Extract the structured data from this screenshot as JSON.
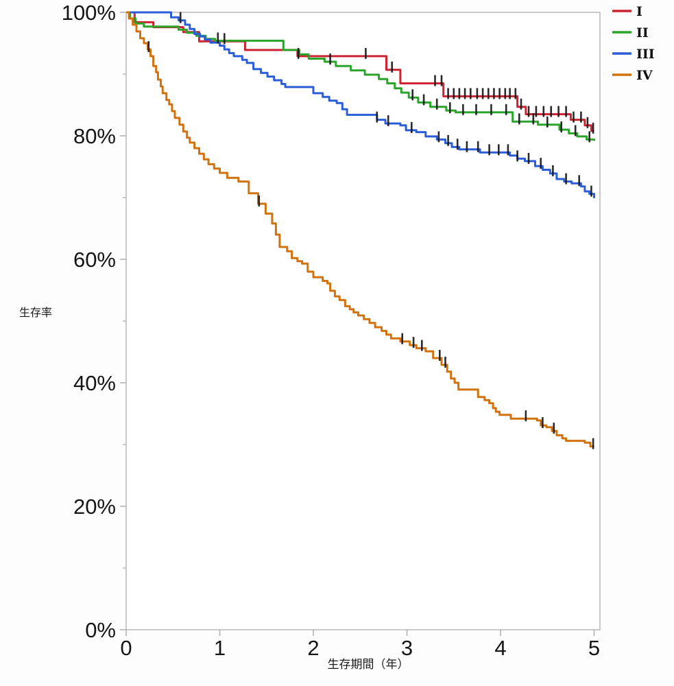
{
  "chart_data": {
    "type": "line",
    "subtype": "kaplan-meier-step",
    "title": "",
    "xlabel": "生存期間（年）",
    "ylabel": "生存率",
    "xlim": [
      0,
      5
    ],
    "ylim": [
      0,
      100
    ],
    "grid": false,
    "legend_position": "top-right",
    "x_ticks": [
      {
        "value": 0,
        "label": "0"
      },
      {
        "value": 1,
        "label": "1"
      },
      {
        "value": 2,
        "label": "2"
      },
      {
        "value": 3,
        "label": "3"
      },
      {
        "value": 4,
        "label": "4"
      },
      {
        "value": 5,
        "label": "5"
      }
    ],
    "y_ticks_major": [
      {
        "value": 100,
        "label": "100%"
      },
      {
        "value": 80,
        "label": "80%"
      },
      {
        "value": 60,
        "label": "60%"
      },
      {
        "value": 40,
        "label": "40%"
      },
      {
        "value": 20,
        "label": "20%"
      },
      {
        "value": 0,
        "label": "0%"
      }
    ],
    "y_ticks_minor": [
      90,
      70,
      50,
      30,
      10
    ],
    "axis_color": "#b3b3b3",
    "series": [
      {
        "name": "I",
        "color": "#cc2433",
        "points": [
          [
            0,
            100
          ],
          [
            0.09,
            98.4
          ],
          [
            0.29,
            97.6
          ],
          [
            0.61,
            96.8
          ],
          [
            0.78,
            95.3
          ],
          [
            1.27,
            93.9
          ],
          [
            1.83,
            92.9
          ],
          [
            2.78,
            90.7
          ],
          [
            2.93,
            88.5
          ],
          [
            3.39,
            86.4
          ],
          [
            4.18,
            84.7
          ],
          [
            4.27,
            83.5
          ],
          [
            4.75,
            82.6
          ],
          [
            4.9,
            81.7
          ],
          [
            4.97,
            80.8
          ],
          [
            5,
            80.8
          ]
        ],
        "censors": [
          1.05,
          1.84,
          2.56,
          2.84,
          3.3,
          3.37,
          3.44,
          3.5,
          3.56,
          3.62,
          3.68,
          3.75,
          3.81,
          3.87,
          3.93,
          3.99,
          4.05,
          4.1,
          4.16,
          4.22,
          4.3,
          4.38,
          4.46,
          4.54,
          4.62,
          4.7,
          4.78,
          4.86,
          4.93,
          4.99
        ]
      },
      {
        "name": "II",
        "color": "#2aa42a",
        "points": [
          [
            0,
            100
          ],
          [
            0.04,
            99
          ],
          [
            0.1,
            98.2
          ],
          [
            0.19,
            97.7
          ],
          [
            0.56,
            97.2
          ],
          [
            0.65,
            96.7
          ],
          [
            0.75,
            96.2
          ],
          [
            0.85,
            95.7
          ],
          [
            0.95,
            95.4
          ],
          [
            1.68,
            93.9
          ],
          [
            1.85,
            93.2
          ],
          [
            1.95,
            92.5
          ],
          [
            2.12,
            92
          ],
          [
            2.24,
            91.3
          ],
          [
            2.4,
            90.6
          ],
          [
            2.55,
            89.9
          ],
          [
            2.7,
            89.2
          ],
          [
            2.79,
            88.5
          ],
          [
            2.87,
            87.7
          ],
          [
            2.94,
            87
          ],
          [
            3.02,
            86.2
          ],
          [
            3.12,
            85.4
          ],
          [
            3.25,
            84.7
          ],
          [
            3.42,
            84.1
          ],
          [
            3.52,
            83.8
          ],
          [
            4.13,
            82.3
          ],
          [
            4.4,
            81.8
          ],
          [
            4.63,
            81
          ],
          [
            4.73,
            80.4
          ],
          [
            4.82,
            79.9
          ],
          [
            4.92,
            79.4
          ],
          [
            5,
            79.2
          ]
        ],
        "censors": [
          0.98,
          2.18,
          3.06,
          3.18,
          3.32,
          3.46,
          3.6,
          3.74,
          3.9,
          4.06,
          4.2,
          4.35,
          4.5,
          4.65,
          4.8,
          4.95
        ]
      },
      {
        "name": "III",
        "color": "#2b5dd7",
        "points": [
          [
            0,
            100
          ],
          [
            0.48,
            99.2
          ],
          [
            0.56,
            98.7
          ],
          [
            0.63,
            98
          ],
          [
            0.68,
            97.3
          ],
          [
            0.73,
            96.5
          ],
          [
            0.79,
            96.1
          ],
          [
            0.84,
            95.6
          ],
          [
            0.9,
            95.1
          ],
          [
            1,
            94.6
          ],
          [
            1.05,
            94
          ],
          [
            1.1,
            93.4
          ],
          [
            1.15,
            92.9
          ],
          [
            1.24,
            92.3
          ],
          [
            1.29,
            91.8
          ],
          [
            1.36,
            90.8
          ],
          [
            1.44,
            90.2
          ],
          [
            1.51,
            89.6
          ],
          [
            1.58,
            89
          ],
          [
            1.66,
            88.4
          ],
          [
            1.7,
            87.9
          ],
          [
            2,
            86.9
          ],
          [
            2.1,
            86.3
          ],
          [
            2.17,
            85.7
          ],
          [
            2.25,
            85.3
          ],
          [
            2.31,
            84.3
          ],
          [
            2.36,
            83.4
          ],
          [
            2.68,
            82.6
          ],
          [
            2.77,
            82
          ],
          [
            2.93,
            81.7
          ],
          [
            2.99,
            80.9
          ],
          [
            3.1,
            80.6
          ],
          [
            3.2,
            79.9
          ],
          [
            3.32,
            79.4
          ],
          [
            3.41,
            78.8
          ],
          [
            3.48,
            78.2
          ],
          [
            3.56,
            77.8
          ],
          [
            3.78,
            77.3
          ],
          [
            4.1,
            76.8
          ],
          [
            4.18,
            76.3
          ],
          [
            4.26,
            75.9
          ],
          [
            4.37,
            75.1
          ],
          [
            4.45,
            74.5
          ],
          [
            4.53,
            73.9
          ],
          [
            4.6,
            73
          ],
          [
            4.68,
            72.6
          ],
          [
            4.76,
            72.3
          ],
          [
            4.86,
            71.8
          ],
          [
            4.9,
            71
          ],
          [
            4.95,
            70.6
          ],
          [
            5,
            69.9
          ]
        ],
        "censors": [
          0.58,
          2.68,
          2.8,
          3.05,
          3.34,
          3.44,
          3.54,
          3.64,
          3.76,
          3.88,
          3.98,
          4.08,
          4.18,
          4.3,
          4.43,
          4.56,
          4.7,
          4.84,
          4.97
        ]
      },
      {
        "name": "IV",
        "color": "#d2720e",
        "points": [
          [
            0,
            100
          ],
          [
            0.03,
            99
          ],
          [
            0.07,
            98
          ],
          [
            0.11,
            96.9
          ],
          [
            0.15,
            95.8
          ],
          [
            0.19,
            95
          ],
          [
            0.23,
            94
          ],
          [
            0.26,
            92.9
          ],
          [
            0.29,
            91.3
          ],
          [
            0.32,
            90.3
          ],
          [
            0.34,
            89.1
          ],
          [
            0.37,
            88
          ],
          [
            0.39,
            86.9
          ],
          [
            0.43,
            85.8
          ],
          [
            0.46,
            85.1
          ],
          [
            0.49,
            84
          ],
          [
            0.52,
            82.9
          ],
          [
            0.57,
            81.8
          ],
          [
            0.61,
            80.7
          ],
          [
            0.65,
            79.7
          ],
          [
            0.68,
            78.9
          ],
          [
            0.73,
            78
          ],
          [
            0.78,
            77.1
          ],
          [
            0.83,
            76.2
          ],
          [
            0.88,
            75.4
          ],
          [
            0.94,
            74.7
          ],
          [
            1,
            74
          ],
          [
            1.08,
            73.2
          ],
          [
            1.2,
            72.6
          ],
          [
            1.31,
            70.7
          ],
          [
            1.41,
            69
          ],
          [
            1.49,
            67.4
          ],
          [
            1.56,
            65.8
          ],
          [
            1.6,
            64
          ],
          [
            1.64,
            62
          ],
          [
            1.72,
            61.3
          ],
          [
            1.77,
            60.2
          ],
          [
            1.83,
            59.7
          ],
          [
            1.88,
            59.3
          ],
          [
            1.94,
            58
          ],
          [
            2,
            57.1
          ],
          [
            2.1,
            56.5
          ],
          [
            2.15,
            56.1
          ],
          [
            2.18,
            54.9
          ],
          [
            2.23,
            54
          ],
          [
            2.28,
            53.4
          ],
          [
            2.34,
            52.4
          ],
          [
            2.39,
            51.9
          ],
          [
            2.43,
            51.4
          ],
          [
            2.48,
            50.9
          ],
          [
            2.54,
            50.3
          ],
          [
            2.6,
            49.7
          ],
          [
            2.66,
            49
          ],
          [
            2.73,
            48.4
          ],
          [
            2.78,
            47.8
          ],
          [
            2.83,
            47.2
          ],
          [
            2.93,
            46.7
          ],
          [
            3.03,
            46.1
          ],
          [
            3.1,
            45.6
          ],
          [
            3.2,
            45.1
          ],
          [
            3.28,
            44
          ],
          [
            3.37,
            42.9
          ],
          [
            3.43,
            41.8
          ],
          [
            3.47,
            40.7
          ],
          [
            3.51,
            40
          ],
          [
            3.55,
            38.9
          ],
          [
            3.76,
            37.7
          ],
          [
            3.83,
            37.2
          ],
          [
            3.88,
            36.7
          ],
          [
            3.92,
            35.9
          ],
          [
            3.95,
            35.3
          ],
          [
            3.99,
            34.8
          ],
          [
            4.11,
            34.2
          ],
          [
            4.39,
            33.9
          ],
          [
            4.43,
            33.1
          ],
          [
            4.49,
            32.8
          ],
          [
            4.55,
            32.2
          ],
          [
            4.6,
            31.5
          ],
          [
            4.66,
            31
          ],
          [
            4.7,
            30.6
          ],
          [
            4.9,
            30.3
          ],
          [
            4.96,
            29.7
          ],
          [
            5,
            29.7
          ]
        ],
        "censors": [
          0.24,
          1.42,
          2.95,
          3.07,
          3.16,
          3.35,
          3.41,
          4.27,
          4.45,
          4.57,
          4.99
        ]
      }
    ]
  },
  "legend": {
    "items": [
      {
        "label": "I",
        "color": "#cc2433"
      },
      {
        "label": "II",
        "color": "#2aa42a"
      },
      {
        "label": "III",
        "color": "#2b5dd7"
      },
      {
        "label": "IV",
        "color": "#d2720e"
      }
    ]
  }
}
